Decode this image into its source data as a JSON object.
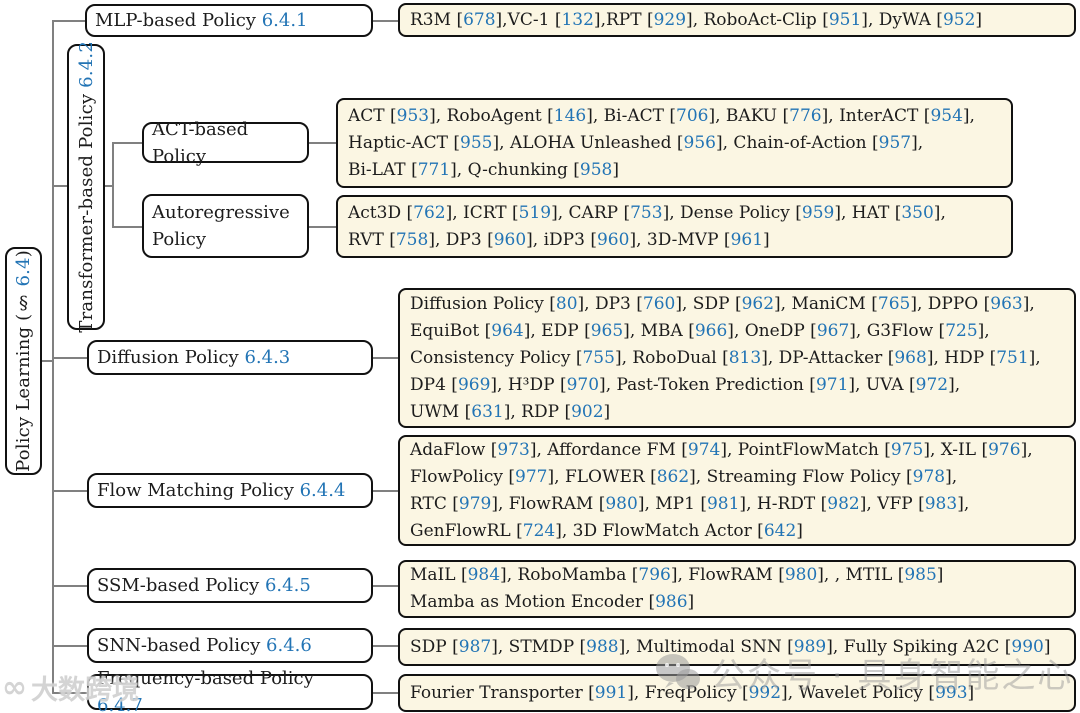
{
  "palette": {
    "leaf_background": "#fbf6e3",
    "node_background": "#ffffff",
    "box_border": "#111111",
    "connector_line": "#808080",
    "citation_blue": "#2274b5",
    "text_color": "#1c1c1c",
    "watermark_gray": "#a0a0a0"
  },
  "nodes": {
    "root": {
      "text": "Policy Learning (§",
      "num": "6.4",
      "post": ")"
    },
    "mlp": {
      "text": "MLP-based Policy",
      "num": "6.4.1"
    },
    "transformer": {
      "text": "Transformer-based Policy",
      "num": "6.4.2"
    },
    "act": {
      "text": "ACT-based Policy",
      "num": ""
    },
    "autoreg": {
      "text": "Autoregressive Policy",
      "num": ""
    },
    "diffusion": {
      "text": "Diffusion Policy",
      "num": "6.4.3"
    },
    "flow": {
      "text": "Flow Matching Policy",
      "num": "6.4.4"
    },
    "ssm": {
      "text": "SSM-based Policy",
      "num": "6.4.5"
    },
    "snn": {
      "text": "SNN-based Policy",
      "num": "6.4.6"
    },
    "freq": {
      "text": "Frequency-based Policy",
      "num": "6.4.7"
    }
  },
  "leaves": {
    "mlp": {
      "lines": [
        "R3M [678],VC-1 [132],RPT [929], RoboAct-Clip [951], DyWA [952]"
      ]
    },
    "act": {
      "lines": [
        "ACT [953], RoboAgent [146], Bi-ACT [706], BAKU [776], InterACT [954],",
        "Haptic-ACT [955], ALOHA Unleashed [956], Chain-of-Action [957],",
        "Bi-LAT [771], Q-chunking [958]"
      ]
    },
    "autoreg": {
      "lines": [
        "Act3D [762], ICRT [519], CARP [753], Dense Policy [959], HAT [350],",
        "RVT [758], DP3 [960], iDP3 [960], 3D-MVP [961]"
      ]
    },
    "diffusion": {
      "lines": [
        "Diffusion Policy [80], DP3 [760], SDP [962], ManiCM [765], DPPO [963],",
        "EquiBot [964], EDP [965], MBA [966], OneDP [967], G3Flow [725],",
        "Consistency Policy [755], RoboDual [813], DP-Attacker [968], HDP [751],",
        "DP4 [969], H³DP [970], Past-Token Prediction [971], UVA [972],",
        "UWM [631], RDP [902]"
      ]
    },
    "flow": {
      "lines": [
        "AdaFlow [973], Affordance FM [974], PointFlowMatch [975], X-IL [976],",
        "FlowPolicy [977], FLOWER [862], Streaming Flow Policy [978],",
        "RTC [979], FlowRAM [980], MP1 [981], H-RDT [982], VFP [983],",
        "GenFlowRL [724], 3D FlowMatch Actor [642]"
      ]
    },
    "ssm": {
      "lines": [
        "MaIL [984], RoboMamba [796], FlowRAM [980], , MTIL [985]",
        "Mamba as Motion Encoder [986]"
      ]
    },
    "snn": {
      "lines": [
        "SDP [987], STMDP [988], Multimodal SNN [989], Fully Spiking A2C [990]"
      ]
    },
    "freq": {
      "lines": [
        "Fourier Transporter [991], FreqPolicy [992], Wavelet Policy [993]"
      ]
    }
  },
  "watermarks": {
    "left_logo_symbol": "∞",
    "left_logo_text": "大数跨境",
    "wechat_text": "公众号 · 具身智能之心"
  }
}
